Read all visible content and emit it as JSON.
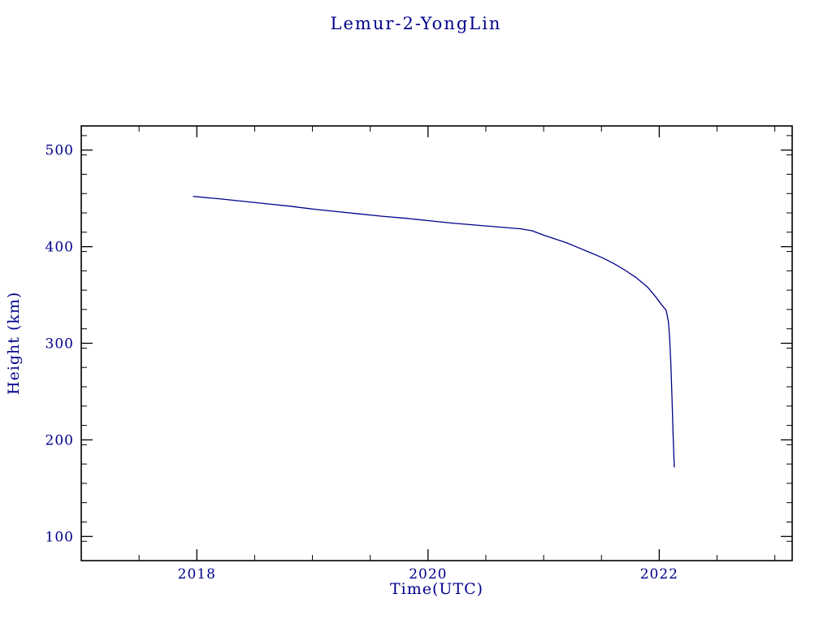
{
  "page": {
    "background": "#ffffff"
  },
  "chart_data": {
    "type": "line",
    "title": "Lemur-2-YongLin",
    "xlabel": "Time(UTC)",
    "ylabel": "Height (km)",
    "xlim": [
      2017.0,
      2023.15
    ],
    "ylim": [
      75,
      525
    ],
    "x_major_ticks": [
      2018,
      2020,
      2022
    ],
    "x_tick_labels": [
      "2018",
      "2020",
      "2022"
    ],
    "x_minor_step": 0.5,
    "y_major_ticks": [
      100,
      200,
      300,
      400,
      500
    ],
    "y_tick_labels": [
      "100",
      "200",
      "300",
      "400",
      "500"
    ],
    "y_minor_step": 20,
    "grid": false,
    "legend": false,
    "axis_color": "#000000",
    "line_color": "#00008b",
    "text_color": "#00008b",
    "series": [
      {
        "name": "Lemur-2-YongLin orbital height",
        "points": [
          [
            2017.97,
            452
          ],
          [
            2018.2,
            449.5
          ],
          [
            2018.4,
            447
          ],
          [
            2018.6,
            444.5
          ],
          [
            2018.8,
            442
          ],
          [
            2019.0,
            439
          ],
          [
            2019.2,
            436.5
          ],
          [
            2019.4,
            434
          ],
          [
            2019.6,
            431.5
          ],
          [
            2019.8,
            429.5
          ],
          [
            2020.0,
            427
          ],
          [
            2020.2,
            424.5
          ],
          [
            2020.4,
            422.5
          ],
          [
            2020.6,
            420.5
          ],
          [
            2020.8,
            418.5
          ],
          [
            2020.9,
            416.5
          ],
          [
            2021.0,
            412
          ],
          [
            2021.1,
            408
          ],
          [
            2021.2,
            404
          ],
          [
            2021.3,
            399
          ],
          [
            2021.4,
            394
          ],
          [
            2021.5,
            389
          ],
          [
            2021.6,
            383
          ],
          [
            2021.7,
            376
          ],
          [
            2021.8,
            368
          ],
          [
            2021.9,
            358
          ],
          [
            2021.97,
            348
          ],
          [
            2022.02,
            340
          ],
          [
            2022.06,
            334
          ],
          [
            2022.08,
            322
          ],
          [
            2022.09,
            305
          ],
          [
            2022.1,
            280
          ],
          [
            2022.11,
            245
          ],
          [
            2022.12,
            205
          ],
          [
            2022.13,
            172
          ]
        ]
      }
    ]
  }
}
